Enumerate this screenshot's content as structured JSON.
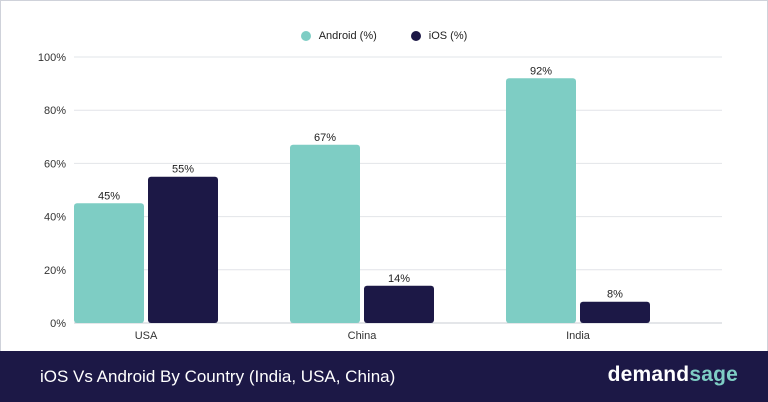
{
  "colors": {
    "android": "#7ecdc4",
    "ios": "#1c1846",
    "grid": "#e2e4e8",
    "axis_text": "#333333",
    "footer_bg": "#1c1846",
    "logo_accent": "#7ecdc4"
  },
  "legend": [
    {
      "label": "Android (%)",
      "color": "#7ecdc4"
    },
    {
      "label": "iOS (%)",
      "color": "#1c1846"
    }
  ],
  "footer": {
    "title": "iOS Vs Android By Country (India, USA, China)",
    "logo_part1": "demand",
    "logo_part2": "sage"
  },
  "chart_data": {
    "type": "bar",
    "categories": [
      "USA",
      "China",
      "India"
    ],
    "series": [
      {
        "name": "Android (%)",
        "values": [
          45,
          67,
          92
        ]
      },
      {
        "name": "iOS (%)",
        "values": [
          55,
          14,
          8
        ]
      }
    ],
    "data_labels": [
      [
        "45%",
        "67%",
        "92%"
      ],
      [
        "55%",
        "14%",
        "8%"
      ]
    ],
    "ylim": [
      0,
      100
    ],
    "yticks": [
      0,
      20,
      40,
      60,
      80,
      100
    ],
    "ytick_labels": [
      "0%",
      "20%",
      "40%",
      "60%",
      "80%",
      "100%"
    ],
    "grid": true,
    "legend_position": "top-center"
  }
}
